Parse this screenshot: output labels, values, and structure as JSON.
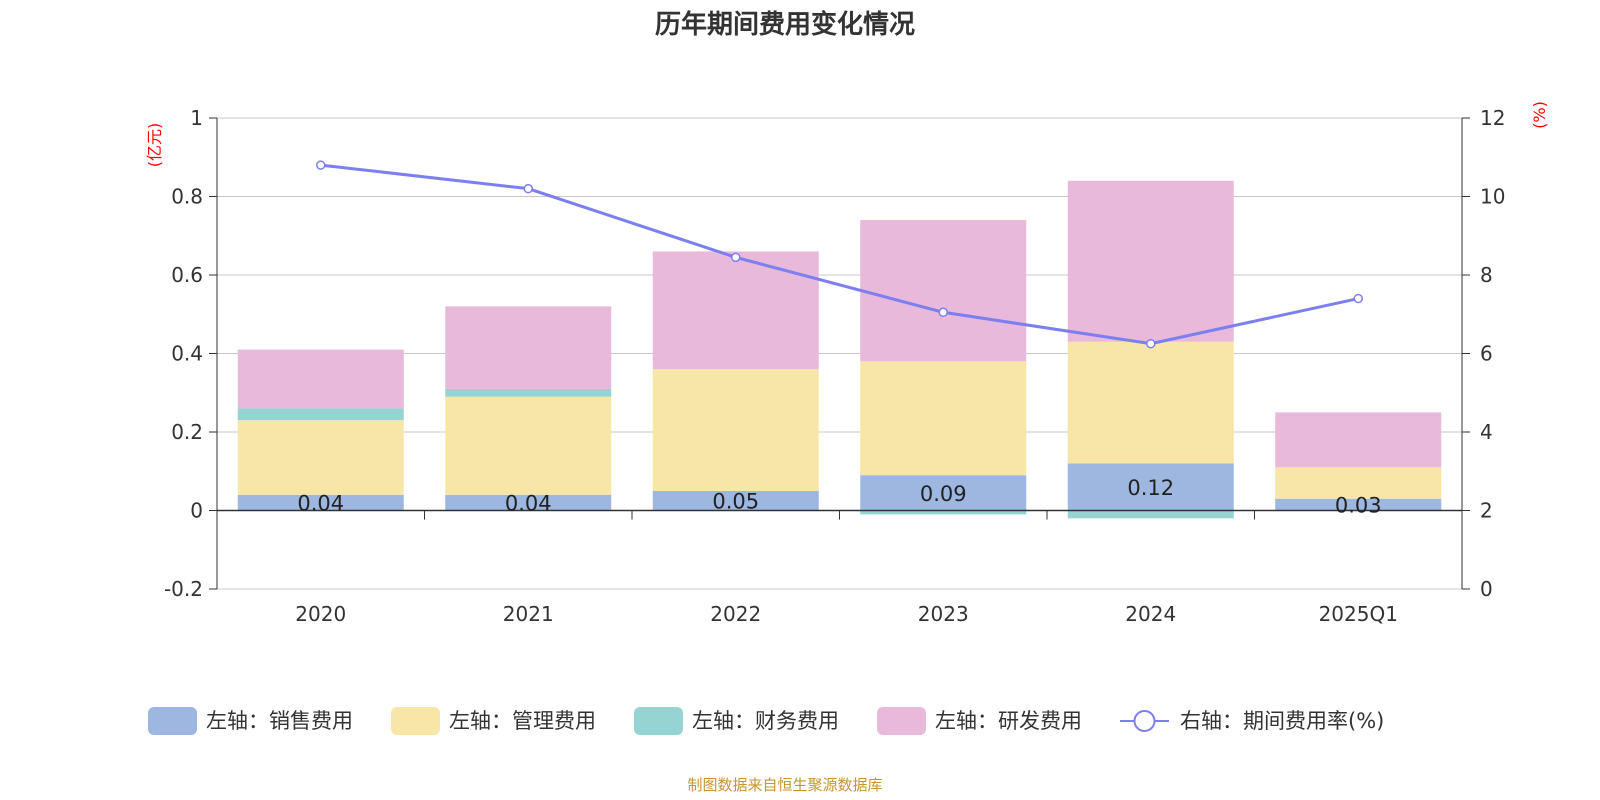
{
  "chart_data": {
    "type": "bar",
    "title": "历年期间费用变化情况",
    "left_unit": "(亿元)",
    "right_unit": "(%)",
    "categories": [
      "2020",
      "2021",
      "2022",
      "2023",
      "2024",
      "2025Q1"
    ],
    "left_axis": {
      "ylim": [
        -0.2,
        1
      ],
      "ticks": [
        "-0.2",
        "0",
        "0.2",
        "0.4",
        "0.6",
        "0.8",
        "1"
      ]
    },
    "right_axis": {
      "ylim": [
        0,
        12
      ],
      "ticks": [
        "0",
        "2",
        "4",
        "6",
        "8",
        "10",
        "12"
      ]
    },
    "grid": true,
    "legend_position": "bottom",
    "stacked": true,
    "series": [
      {
        "name": "左轴：销售费用",
        "type": "bar",
        "color": "#9db7e0",
        "values": [
          0.04,
          0.04,
          0.05,
          0.09,
          0.12,
          0.03
        ],
        "labels": [
          "0.04",
          "0.04",
          "0.05",
          "0.09",
          "0.12",
          "0.03"
        ]
      },
      {
        "name": "左轴：管理费用",
        "type": "bar",
        "color": "#f8e6a8",
        "values": [
          0.19,
          0.25,
          0.31,
          0.29,
          0.31,
          0.08
        ]
      },
      {
        "name": "左轴：财务费用",
        "type": "bar",
        "color": "#96d4d4",
        "values": [
          0.03,
          0.02,
          0.0,
          -0.01,
          -0.02,
          0.0
        ]
      },
      {
        "name": "左轴：研发费用",
        "type": "bar",
        "color": "#e8b9da",
        "values": [
          0.15,
          0.21,
          0.3,
          0.36,
          0.41,
          0.14
        ]
      },
      {
        "name": "右轴：期间费用率(%)",
        "type": "line",
        "axis": "right",
        "color": "#7b7ff0",
        "values": [
          10.8,
          10.2,
          8.45,
          7.05,
          6.25,
          7.4
        ]
      }
    ]
  },
  "source_text": "制图数据来自恒生聚源数据库"
}
